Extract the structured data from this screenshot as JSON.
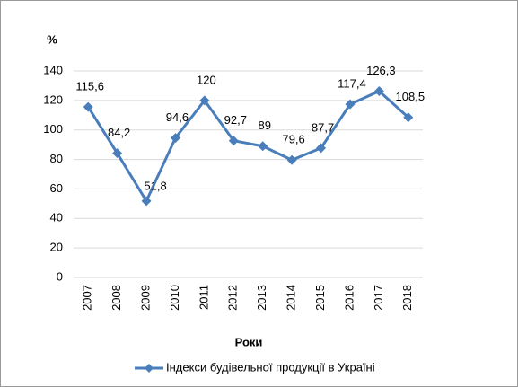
{
  "chart_data": {
    "type": "line",
    "y_label": "%",
    "x_label": "Роки",
    "categories": [
      "2007",
      "2008",
      "2009",
      "2010",
      "2011",
      "2012",
      "2013",
      "2014",
      "2015",
      "2016",
      "2017",
      "2018"
    ],
    "series": [
      {
        "name": "Індекси будівельної продукції в Україні",
        "color": "#4a7ebb",
        "values": [
          115.6,
          84.2,
          51.8,
          94.6,
          120,
          92.7,
          89,
          79.6,
          87.7,
          117.4,
          126.3,
          108.5
        ],
        "value_labels": [
          "115,6",
          "84,2",
          "51,8",
          "94,6",
          "120",
          "92,7",
          "89",
          "79,6",
          "87,7",
          "117,4",
          "126,3",
          "108,5"
        ]
      }
    ],
    "ylim": [
      0,
      140
    ],
    "yticks": [
      0,
      20,
      40,
      60,
      80,
      100,
      120,
      140
    ],
    "grid": true,
    "legend": "bottom"
  }
}
